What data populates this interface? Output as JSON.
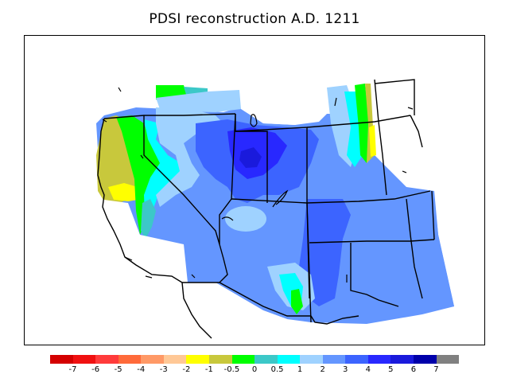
{
  "title": "PDSI reconstruction A.D. 1211",
  "legend": {
    "colors": [
      "#d40000",
      "#f01010",
      "#ff3b3b",
      "#ff6a3a",
      "#ff9966",
      "#ffc896",
      "#ffff00",
      "#c8c83c",
      "#00ff00",
      "#3cc8c8",
      "#00ffff",
      "#9fd2ff",
      "#6496ff",
      "#3c64ff",
      "#2828ff",
      "#1a1adc",
      "#0000aa",
      "#808080"
    ],
    "labels": [
      "-7",
      "-6",
      "-5",
      "-4",
      "-3",
      "-2",
      "-1",
      "-0.5",
      "0",
      "0.5",
      "1",
      "2",
      "3",
      "4",
      "5",
      "6",
      "7"
    ]
  },
  "map": {
    "region": "Western United States",
    "boundary_color": "#000000"
  }
}
